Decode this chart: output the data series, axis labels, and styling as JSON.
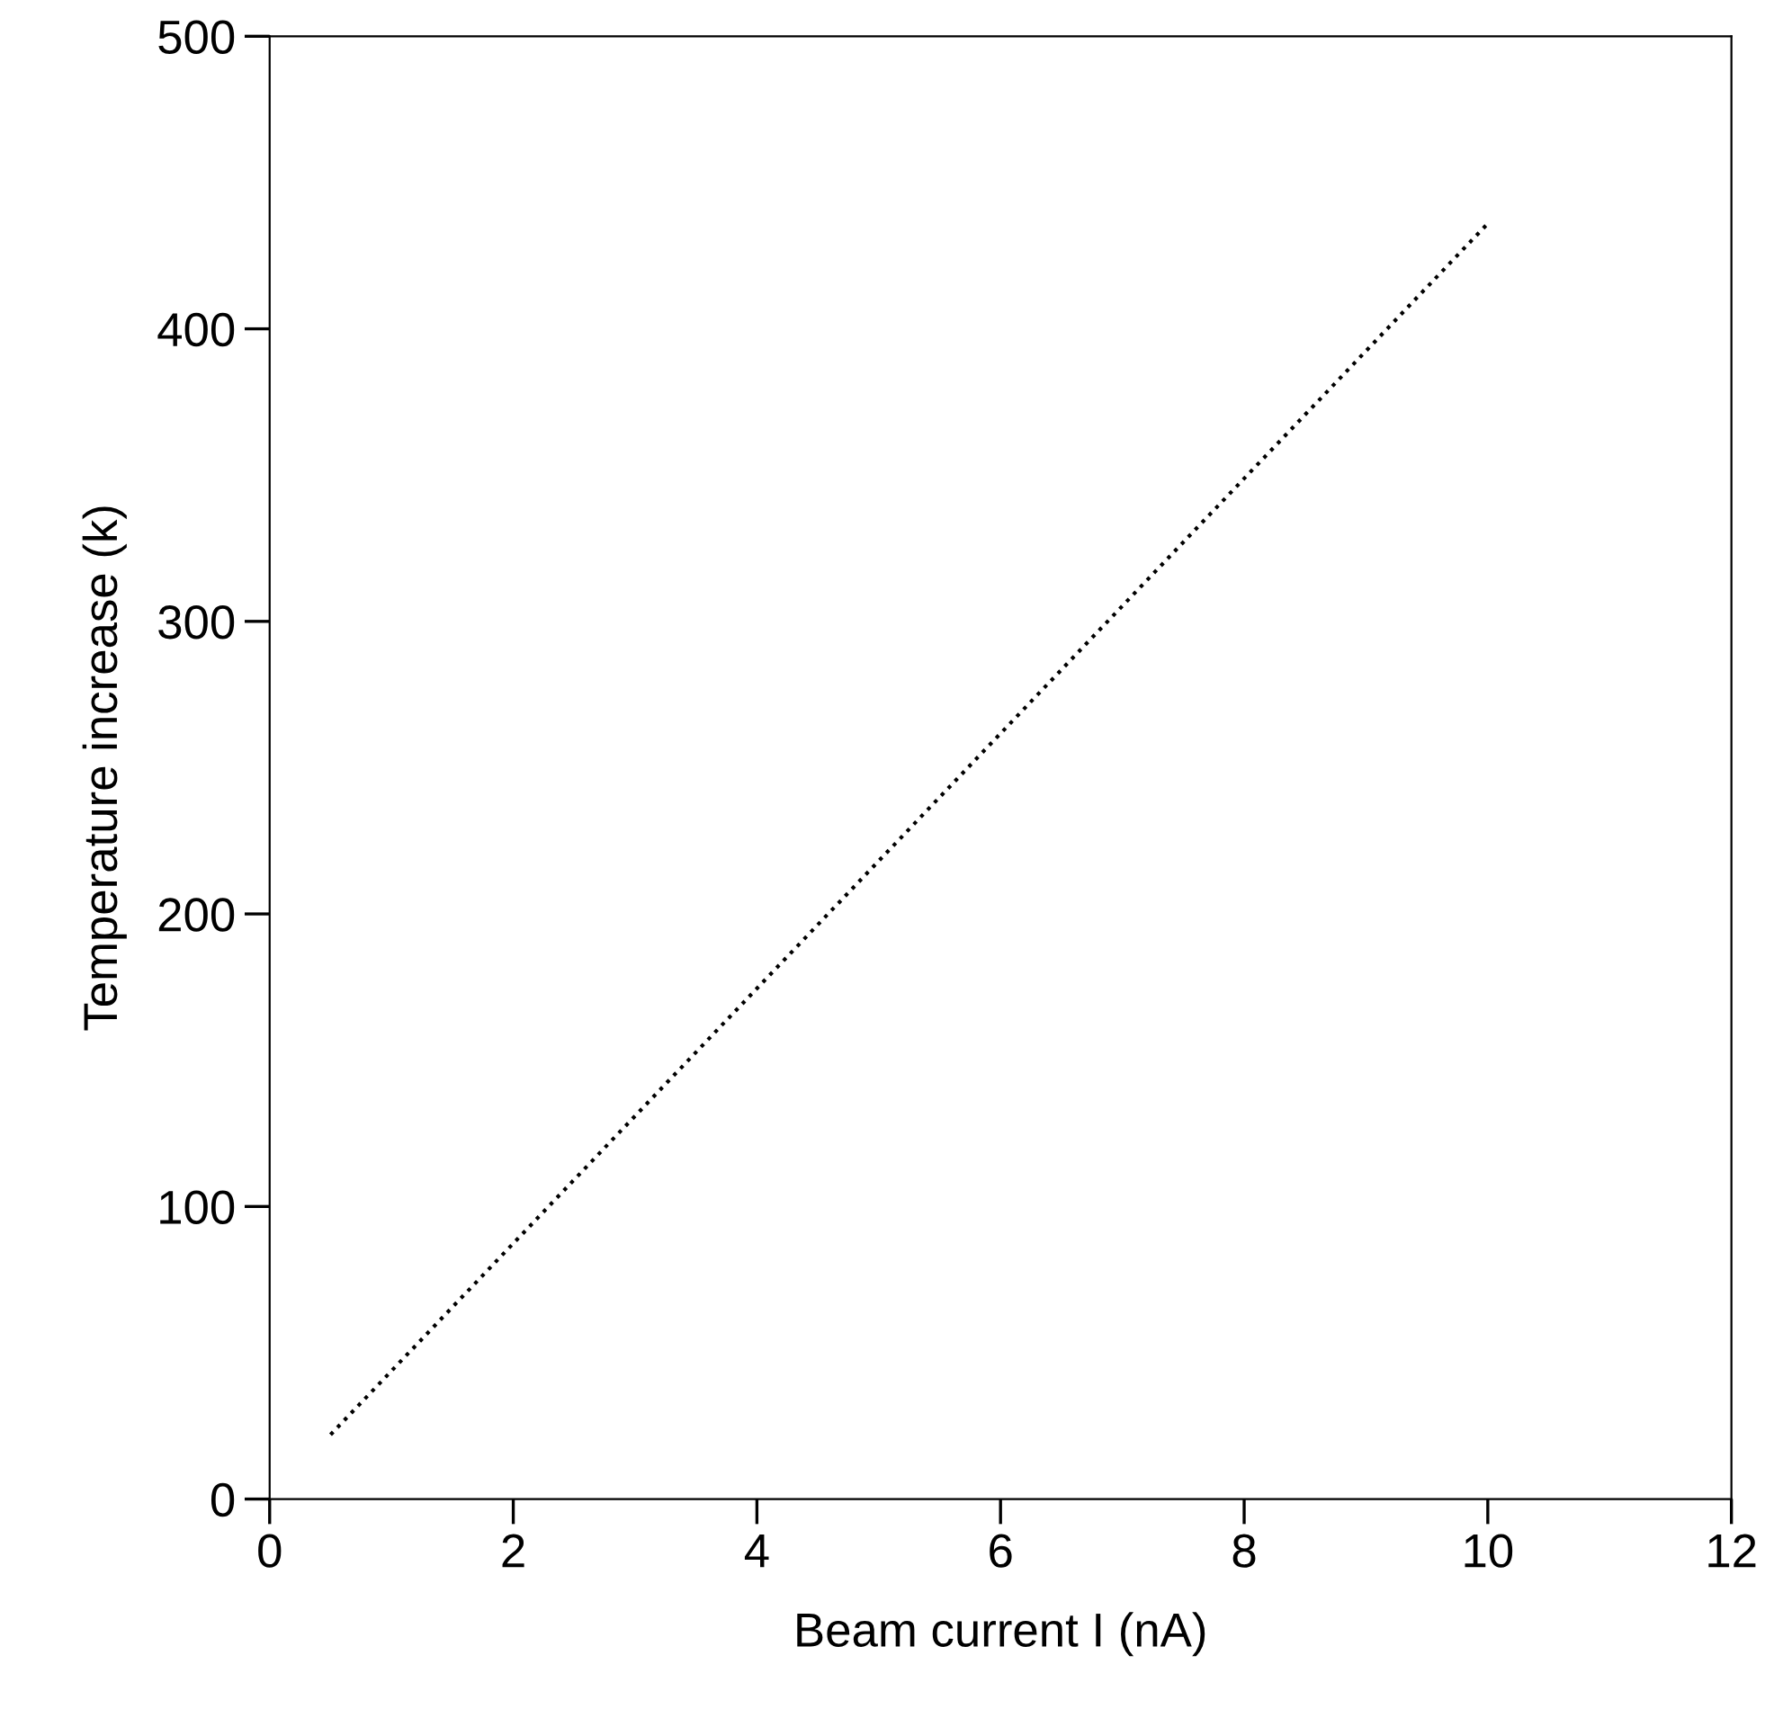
{
  "chart_data": {
    "type": "line",
    "xlabel": "Beam current I (nA)",
    "ylabel": "Temperature increase (k)",
    "series": [
      {
        "x": [
          0.5,
          10
        ],
        "values": [
          22,
          436
        ],
        "color": "#000000"
      }
    ],
    "xlim": [
      0,
      12
    ],
    "xticks": [
      0,
      2,
      4,
      6,
      8,
      10,
      12
    ],
    "ylim": [
      0,
      500
    ],
    "yticks": [
      0,
      100,
      200,
      300,
      400,
      500
    ],
    "grid": false,
    "legend": false,
    "marker": "none",
    "line_style": "dotted"
  }
}
